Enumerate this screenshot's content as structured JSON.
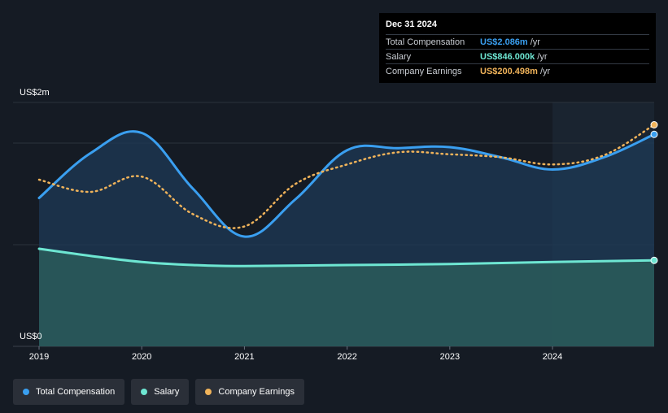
{
  "tooltip": {
    "date": "Dec 31 2024",
    "rows": [
      {
        "label": "Total Compensation",
        "value": "US$2.086m",
        "unit": "/yr",
        "color": "#3a9ff0"
      },
      {
        "label": "Salary",
        "value": "US$846.000k",
        "unit": "/yr",
        "color": "#6ee6d2"
      },
      {
        "label": "Company Earnings",
        "value": "US$200.498m",
        "unit": "/yr",
        "color": "#f0b35a"
      }
    ]
  },
  "legend": [
    {
      "label": "Total Compensation",
      "color": "#3a9ff0"
    },
    {
      "label": "Salary",
      "color": "#6ee6d2"
    },
    {
      "label": "Company Earnings",
      "color": "#f0b35a"
    }
  ],
  "chart_data": {
    "type": "area",
    "y_top_label": "US$2m",
    "y_bottom_label": "US$0",
    "ylim": [
      0,
      2.4
    ],
    "xlim": [
      2019,
      2024.99
    ],
    "x_ticks": [
      "2019",
      "2020",
      "2021",
      "2022",
      "2023",
      "2024"
    ],
    "x_tick_values": [
      2019,
      2020,
      2021,
      2022,
      2023,
      2024
    ],
    "highlight_start": 2024,
    "series": [
      {
        "name": "Total Compensation",
        "color": "#3a9ff0",
        "fill": "#1d3a55",
        "style": "solid",
        "x": [
          2019,
          2019.5,
          2020,
          2020.5,
          2021,
          2021.5,
          2022,
          2022.5,
          2023,
          2023.5,
          2024,
          2024.5,
          2024.99
        ],
        "y": [
          1.46,
          1.9,
          2.1,
          1.55,
          1.08,
          1.45,
          1.93,
          1.95,
          1.96,
          1.86,
          1.74,
          1.86,
          2.086
        ]
      },
      {
        "name": "Salary",
        "color": "#6ee6d2",
        "fill": "#2a5a5a",
        "style": "solid",
        "x": [
          2019,
          2019.5,
          2020,
          2020.5,
          2021,
          2022,
          2023,
          2024,
          2024.99
        ],
        "y": [
          0.96,
          0.89,
          0.83,
          0.8,
          0.79,
          0.8,
          0.81,
          0.83,
          0.846
        ]
      },
      {
        "name": "Company Earnings",
        "color": "#f0b35a",
        "style": "dotted",
        "x": [
          2019,
          2019.5,
          2020,
          2020.5,
          2021,
          2021.5,
          2022,
          2022.5,
          2023,
          2023.5,
          2024,
          2024.5,
          2024.99
        ],
        "y": [
          1.64,
          1.52,
          1.67,
          1.3,
          1.18,
          1.6,
          1.79,
          1.91,
          1.89,
          1.86,
          1.79,
          1.88,
          2.18
        ]
      }
    ]
  }
}
